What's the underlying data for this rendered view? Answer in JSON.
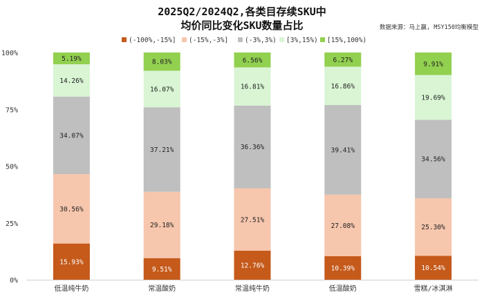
{
  "title_line1": "2025Q2/2024Q2,各类目存续SKU中",
  "title_line2": "均价同比变化SKU数量占比",
  "source": "数据来源：马上赢, MSY150均衡模型",
  "chart_data": {
    "type": "bar",
    "stacked": true,
    "percent": true,
    "categories": [
      "低温纯牛奶",
      "常温酸奶",
      "常温纯牛奶",
      "低温酸奶",
      "雪糕/冰淇淋"
    ],
    "series": [
      {
        "name": "(-100%,-15%]",
        "color": "#c55a1b",
        "text_color": "#ffffff",
        "values": [
          15.93,
          9.51,
          12.76,
          10.39,
          10.54
        ],
        "labels": [
          "15.93%",
          "9.51%",
          "12.76%",
          "10.39%",
          "10.54%"
        ]
      },
      {
        "name": "(-15%,-3%]",
        "color": "#f6c6ad",
        "text_color": "#222222",
        "values": [
          30.56,
          29.18,
          27.51,
          27.08,
          25.3
        ],
        "labels": [
          "30.56%",
          "29.18%",
          "27.51%",
          "27.08%",
          "25.30%"
        ]
      },
      {
        "name": "(-3%,3%)",
        "color": "#bfbfbf",
        "text_color": "#222222",
        "values": [
          34.07,
          37.21,
          36.36,
          39.41,
          34.56
        ],
        "labels": [
          "34.07%",
          "37.21%",
          "36.36%",
          "39.41%",
          "34.56%"
        ]
      },
      {
        "name": "[3%,15%)",
        "color": "#d9f5d4",
        "text_color": "#222222",
        "values": [
          14.26,
          16.07,
          16.81,
          16.86,
          19.69
        ],
        "labels": [
          "14.26%",
          "16.07%",
          "16.81%",
          "16.86%",
          "19.69%"
        ]
      },
      {
        "name": "[15%,100%)",
        "color": "#92d050",
        "text_color": "#222222",
        "values": [
          5.19,
          8.03,
          6.56,
          6.27,
          9.91
        ],
        "labels": [
          "5.19%",
          "8.03%",
          "6.56%",
          "6.27%",
          "9.91%"
        ]
      }
    ],
    "ylim": [
      0,
      100
    ],
    "yticks": [
      "0%",
      "25%",
      "50%",
      "75%",
      "100%"
    ],
    "ytick_values": [
      0,
      25,
      50,
      75,
      100
    ],
    "legend_position": "top-center",
    "grid": false
  }
}
